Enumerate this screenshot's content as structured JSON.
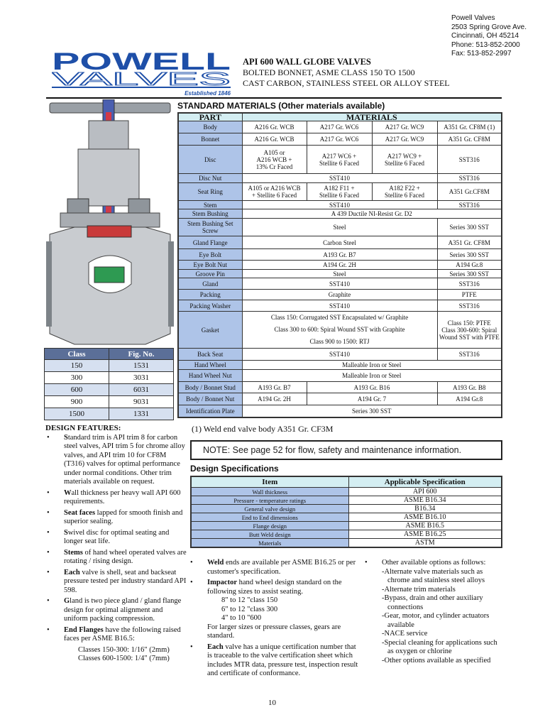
{
  "address": [
    "Powell Valves",
    "2503 Spring Grove Ave.",
    "Cincinnati, OH 45214",
    "Phone: 513-852-2000",
    "Fax: 513-852-2997"
  ],
  "logo": {
    "line1": "POWELL",
    "line2": "VALVES",
    "established": "Established 1846",
    "color": "#1e4fa8"
  },
  "title": {
    "main": "API 600 WALL GLOBE VALVES",
    "line2": "BOLTED BONNET, ASME CLASS 150 TO 1500",
    "line3": "CAST CARBON, STAINLESS STEEL OR ALLOY STEEL"
  },
  "materials": {
    "heading": "STANDARD MATERIALS (Other materials available)",
    "headers": [
      "PART",
      "MATERIALS"
    ],
    "rows": [
      {
        "part": "Body",
        "cells": [
          [
            "A216 Gr. WCB",
            1
          ],
          [
            "A217 Gr. WC6",
            1
          ],
          [
            "A217 Gr. WC9",
            1
          ],
          [
            "A351 Gr. CF8M (1)",
            1
          ]
        ]
      },
      {
        "part": "Bonnet",
        "cells": [
          [
            "A216 Gr. WCB",
            1
          ],
          [
            "A217 Gr. WC6",
            1
          ],
          [
            "A217 Gr. WC9",
            1
          ],
          [
            "A351 Gr. CF8M",
            1
          ]
        ]
      },
      {
        "part": "Disc",
        "cells": [
          [
            "A105 or\nA216 WCB +\n13% Cr Faced",
            1
          ],
          [
            "A217 WC6 +\nStellite 6 Faced",
            1
          ],
          [
            "A217 WC9 +\nStellite 6 Faced",
            1
          ],
          [
            "SST316",
            1
          ]
        ]
      },
      {
        "part": "Disc Nut",
        "cells": [
          [
            "SST410",
            3
          ],
          [
            "SST316",
            1
          ]
        ]
      },
      {
        "part": "Seat Ring",
        "cells": [
          [
            "A105 or A216 WCB\n+ Stellite 6 Faced",
            1
          ],
          [
            "A182 F11 +\nStellite 6 Faced",
            1
          ],
          [
            "A182 F22 +\nStellite 6 Faced",
            1
          ],
          [
            "A351 Gr.CF8M",
            1
          ]
        ]
      },
      {
        "part": "Stem",
        "cells": [
          [
            "SST410",
            3
          ],
          [
            "SST316",
            1
          ]
        ]
      },
      {
        "part": "Stem Bushing",
        "cells": [
          [
            "A 439 Ductile NI-Resist Gr. D2",
            4
          ]
        ]
      },
      {
        "part": "Stem Bushing Set Screw",
        "cells": [
          [
            "Steel",
            3
          ],
          [
            "Series 300 SST",
            1
          ]
        ]
      },
      {
        "part": "Gland Flange",
        "cells": [
          [
            "Carbon Steel",
            3
          ],
          [
            "A351 Gr. CF8M",
            1
          ]
        ]
      },
      {
        "part": "Eye Bolt",
        "cells": [
          [
            "A193 Gr. B7",
            3
          ],
          [
            "Series 300 SST",
            1
          ]
        ]
      },
      {
        "part": "Eye Bolt Nut",
        "cells": [
          [
            "A194 Gr. 2H",
            3
          ],
          [
            "A194 Gr.8",
            1
          ]
        ]
      },
      {
        "part": "Groove Pin",
        "cells": [
          [
            "Steel",
            3
          ],
          [
            "Series 300 SST",
            1
          ]
        ]
      },
      {
        "part": "Gland",
        "cells": [
          [
            "SST410",
            3
          ],
          [
            "SST316",
            1
          ]
        ]
      },
      {
        "part": "Packing",
        "cells": [
          [
            "Graphite",
            3
          ],
          [
            "PTFE",
            1
          ]
        ]
      },
      {
        "part": "Packing Washer",
        "cells": [
          [
            "SST410",
            3
          ],
          [
            "SST316",
            1
          ]
        ]
      },
      {
        "part": "Gasket",
        "cells": [
          [
            "Class 150: Corrugated SST Encapsulated w/ Graphite\nClass 300 to 600: Spiral Wound SST with Graphite\nClass 900 to 1500: RTJ",
            3
          ],
          [
            "Class 150: PTFE\nClass 300-600: Spiral Wound SST with PTFE",
            1
          ]
        ]
      },
      {
        "part": "Back Seat",
        "cells": [
          [
            "SST410",
            3
          ],
          [
            "SST316",
            1
          ]
        ]
      },
      {
        "part": "Hand Wheel",
        "cells": [
          [
            "Malleable Iron or Steel",
            4
          ]
        ]
      },
      {
        "part": "Hand Wheel Nut",
        "cells": [
          [
            "Malleable Iron or Steel",
            4
          ]
        ]
      },
      {
        "part": "Body / Bonnet Stud",
        "cells": [
          [
            "A193 Gr. B7",
            1
          ],
          [
            "A193 Gr. B16",
            2
          ],
          [
            "A193 Gr. B8",
            1
          ]
        ]
      },
      {
        "part": "Body / Bonnet Nut",
        "cells": [
          [
            "A194 Gr. 2H",
            1
          ],
          [
            "A194 Gr. 7",
            2
          ],
          [
            "A194 Gr.8",
            1
          ]
        ]
      },
      {
        "part": "Identification Plate",
        "cells": [
          [
            "Series 300 SST",
            4
          ]
        ]
      }
    ],
    "footnote": "(1) Weld end valve body A351 Gr. CF3M"
  },
  "class_table": {
    "headers": [
      "Class",
      "Fig. No."
    ],
    "rows": [
      [
        "150",
        "1531"
      ],
      [
        "300",
        "3031"
      ],
      [
        "600",
        "6031"
      ],
      [
        "900",
        "9031"
      ],
      [
        "1500",
        "1331"
      ]
    ]
  },
  "note": "NOTE: See page 52 for flow, safety and maintenance information.",
  "design_features": {
    "heading": "DESIGN FEATURES:",
    "items": [
      {
        "lead": "S",
        "text": "tandard trim is API trim 8 for carbon steel valves, API trim 5 for chrome alloy valves, and API trim 10 for CF8M (T316) valves for optimal performance under normal conditions. Other trim materials available on request."
      },
      {
        "lead": "W",
        "text": "all thickness per heavy wall API 600 requirements."
      },
      {
        "lead": "Seat faces",
        "text": " lapped for smooth finish and superior sealing."
      },
      {
        "lead": "S",
        "text": "wivel disc for optimal seating and longer seat life."
      },
      {
        "lead": "Stems",
        "text": " of hand wheel operated valves are rotating / rising design."
      },
      {
        "lead": "Each",
        "text": " valve is shell, seat and backseat pressure tested per industry standard API 598."
      },
      {
        "lead": "G",
        "text": "land is two piece gland / gland flange design for optimal alignment and uniform packing compression."
      },
      {
        "lead": "End Flanges",
        "text": " have the following raised faces per ASME B16.5:"
      }
    ],
    "flange_lines": [
      "Classes 150-300: 1/16\" (2mm)",
      "Classes 600-1500: 1/4\" (7mm)"
    ]
  },
  "design_specs": {
    "heading": "Design Specifications",
    "headers": [
      "Item",
      "Applicable Specification"
    ],
    "rows": [
      [
        "Wall thickness",
        "API 600"
      ],
      [
        "Pressure - temperature ratings",
        "ASME B16.34"
      ],
      [
        "General valve design",
        "B16.34"
      ],
      [
        "End to End dimensions",
        "ASME B16.10"
      ],
      [
        "Flange design",
        "ASME B16.5"
      ],
      [
        "Butt Weld design",
        "ASME B16.25"
      ],
      [
        "Materials",
        "ASTM"
      ]
    ]
  },
  "middle_bullets": {
    "weld": {
      "lead": "Weld",
      "text": " ends are available per ASME B16.25 or per customer's specification."
    },
    "impactor": {
      "lead": "Impactor",
      "text": " hand wheel design standard on the following sizes to assist seating.",
      "sizes": [
        "8\" to 12 \"class 150",
        "6\" to 12 \"class 300",
        "4\" to 10 \"600"
      ],
      "after": "For larger sizes or pressure classes, gears are standard."
    },
    "each": {
      "lead": "Each",
      "text": " valve has a unique certification number that is traceable to the valve certification sheet which includes MTR data, pressure test, inspection result and certificate of conformance."
    }
  },
  "other_options": {
    "lead": "Other available options as follows:",
    "items": [
      "-Alternate valve materials such as chrome and stainless steel alloys",
      "-Alternate trim materials",
      "-Bypass, drain and other auxiliary connections",
      "-Gear, motor, and cylinder actuators available",
      "-NACE service",
      "-Special cleaning for applications such as oxygen or chlorine",
      "-Other options available as specified"
    ]
  },
  "page_number": "10"
}
